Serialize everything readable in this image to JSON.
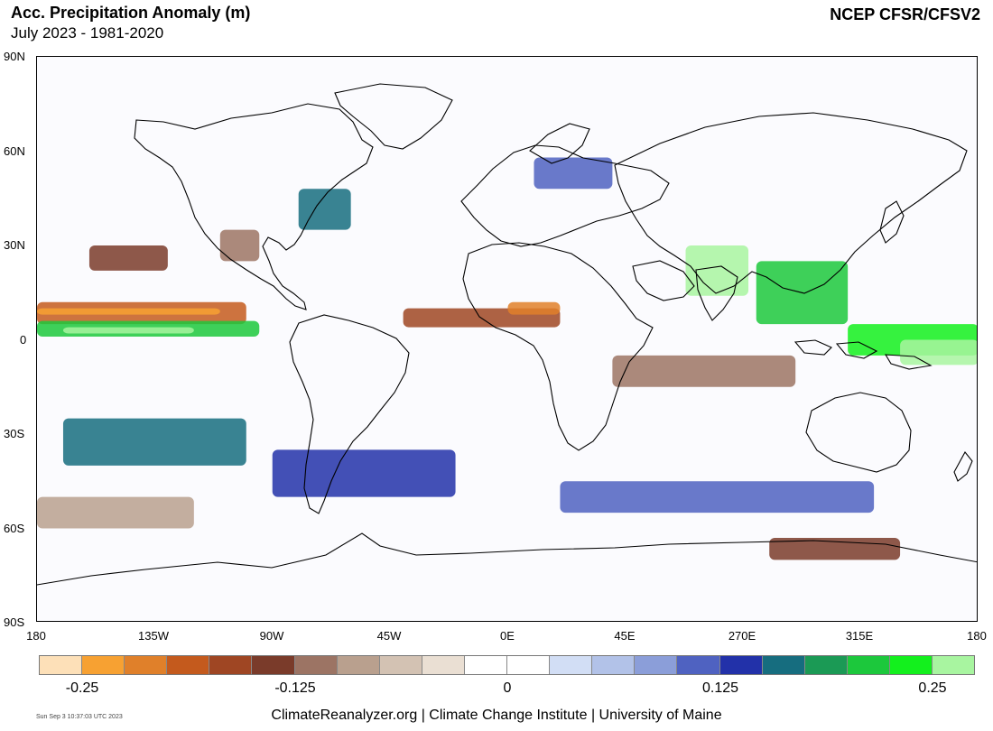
{
  "header": {
    "title": "Acc. Precipitation Anomaly (m)",
    "subtitle": "July 2023 - 1981-2020",
    "source": "NCEP CFSR/CFSV2"
  },
  "map": {
    "type": "heatmap",
    "projection": "equirectangular",
    "lat_labels": [
      "90N",
      "60N",
      "30N",
      "0",
      "30S",
      "60S",
      "90S"
    ],
    "lon_labels": [
      "180",
      "135W",
      "90W",
      "45W",
      "0E",
      "45E",
      "270E",
      "315E",
      "180"
    ],
    "lat_range": [
      -90,
      90
    ],
    "lon_range": [
      -180,
      180
    ]
  },
  "colorbar": {
    "colors": [
      "#fde0b8",
      "#f7a132",
      "#e0802a",
      "#c45a1d",
      "#9f4623",
      "#7a3b2a",
      "#9c7464",
      "#b9a08e",
      "#d3c2b3",
      "#eadfd3",
      "#ffffff",
      "#ffffff",
      "#d2def5",
      "#b2c2e8",
      "#8b9ed9",
      "#4f62c1",
      "#2231a9",
      "#166d7f",
      "#1b9a55",
      "#1cc83c",
      "#13f01d",
      "#a8f5a0"
    ],
    "labels": [
      "-0.25",
      "-0.125",
      "0",
      "0.125",
      "0.25"
    ],
    "range": [
      -0.25,
      0.25
    ]
  },
  "footer": {
    "timestamp": "Sun Sep  3 10:37:03 UTC 2023",
    "credit": "ClimateReanalyzer.org | Climate Change Institute | University of Maine"
  }
}
